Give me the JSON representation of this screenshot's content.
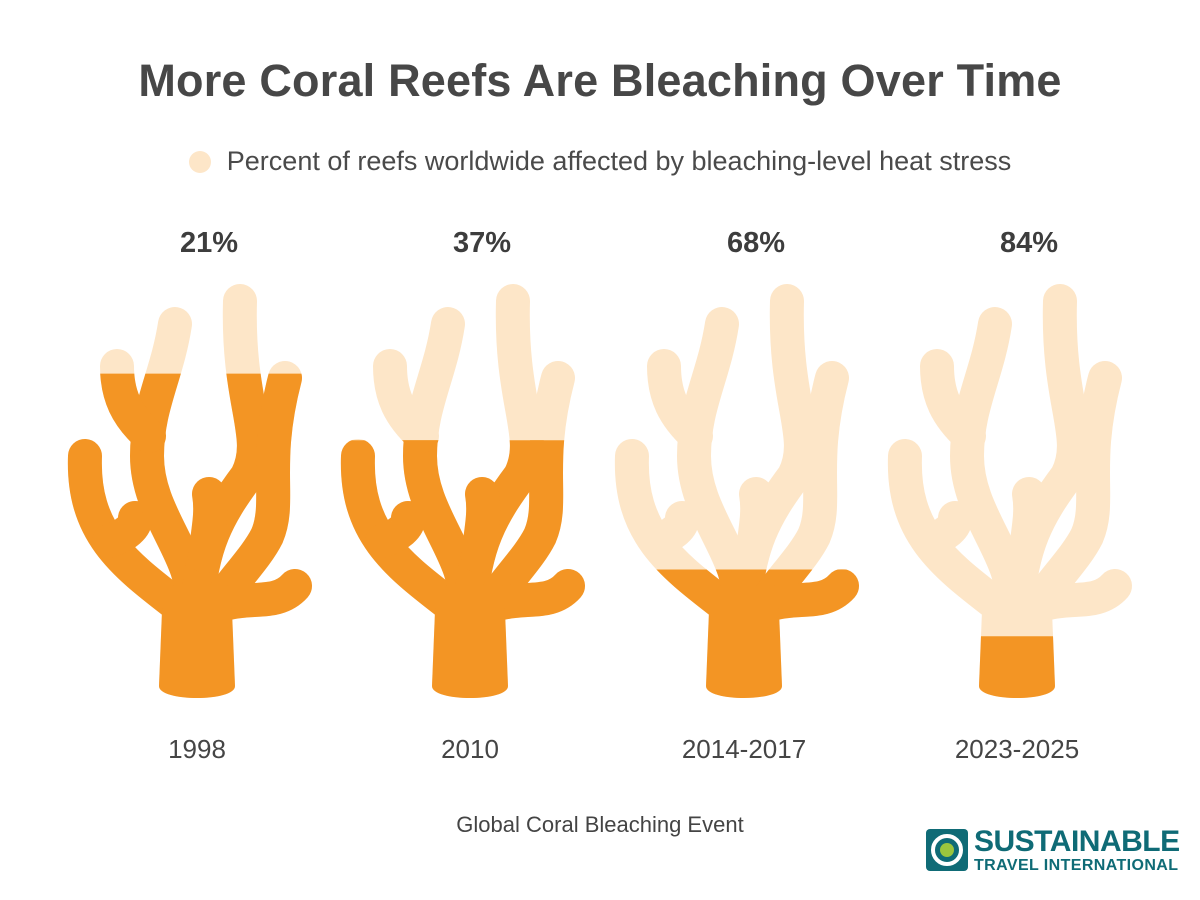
{
  "title": "More Coral Reefs Are Bleaching Over Time",
  "legend": {
    "label": "Percent of reefs worldwide affected by bleaching-level heat stress"
  },
  "chart_data": {
    "type": "bar",
    "title": "More Coral Reefs Are Bleaching Over Time",
    "categories": [
      "1998",
      "2010",
      "2014-2017",
      "2023-2025"
    ],
    "series": [
      {
        "name": "Percent of reefs worldwide affected by bleaching-level heat stress",
        "values": [
          21,
          37,
          68,
          84
        ],
        "labels": [
          "21%",
          "37%",
          "68%",
          "84%"
        ]
      }
    ],
    "xlabel": "Global Coral Bleaching Event",
    "ylabel": "",
    "ylim": [
      0,
      100
    ]
  },
  "colors": {
    "healthy": "#f39524",
    "bleached": "#fde6c8",
    "logo": "#0f6b76"
  },
  "logo": {
    "name": "SUSTAINABLE",
    "subtitle": "TRAVEL INTERNATIONAL"
  }
}
